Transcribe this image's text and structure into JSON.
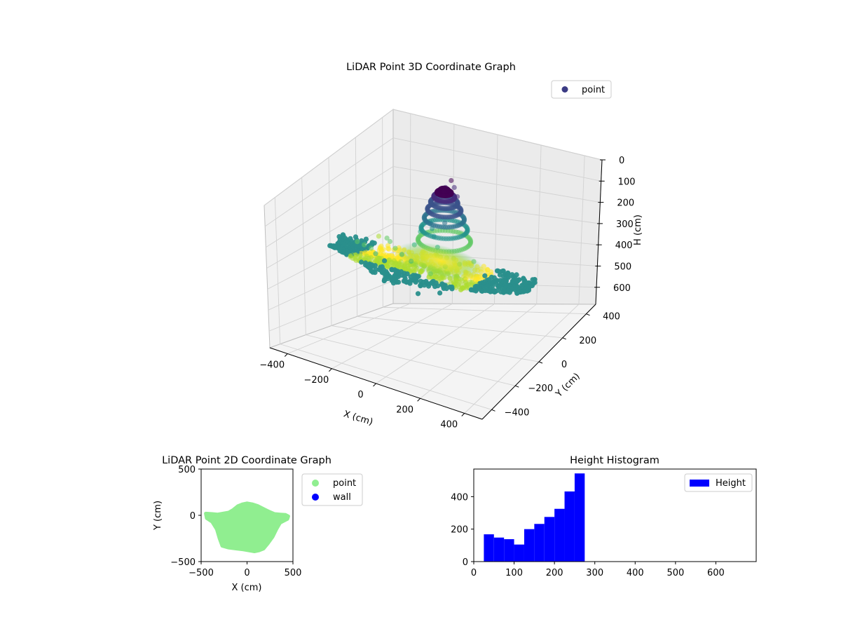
{
  "chart_data": [
    {
      "type": "scatter",
      "title": "LiDAR Point 3D Coordinate Graph",
      "xlabel": "X (cm)",
      "ylabel": "Y (cm)",
      "zlabel": "H (cm)",
      "xlim": [
        -480,
        480
      ],
      "ylim": [
        -480,
        480
      ],
      "zlim": [
        0,
        680
      ],
      "z_inverted": true,
      "xticks": [
        -400,
        -200,
        0,
        200,
        400
      ],
      "yticks": [
        -400,
        -200,
        0,
        200,
        400
      ],
      "zticks": [
        0,
        100,
        200,
        300,
        400,
        500,
        600
      ],
      "colormap": "viridis",
      "legend": {
        "label": "point",
        "color": "#3b3b84",
        "placement": "top-right"
      },
      "grid": true,
      "series": [
        {
          "name": "point",
          "sample_points": [
            [
              -450,
              20,
              320
            ],
            [
              -420,
              0,
              300
            ],
            [
              -400,
              -30,
              290
            ],
            [
              -380,
              30,
              310
            ],
            [
              -350,
              -60,
              280
            ],
            [
              -320,
              10,
              300
            ],
            [
              -300,
              -90,
              270
            ],
            [
              -280,
              40,
              290
            ],
            [
              -250,
              -120,
              260
            ],
            [
              -230,
              20,
              280
            ],
            [
              -200,
              -150,
              250
            ],
            [
              -180,
              -40,
              260
            ],
            [
              -150,
              -200,
              240
            ],
            [
              -120,
              -100,
              250
            ],
            [
              -100,
              60,
              240
            ],
            [
              -80,
              -250,
              230
            ],
            [
              -60,
              -150,
              240
            ],
            [
              -40,
              90,
              110
            ],
            [
              -20,
              120,
              60
            ],
            [
              0,
              130,
              30
            ],
            [
              20,
              120,
              50
            ],
            [
              40,
              110,
              80
            ],
            [
              60,
              90,
              120
            ],
            [
              80,
              -280,
              250
            ],
            [
              100,
              -200,
              260
            ],
            [
              120,
              -120,
              260
            ],
            [
              150,
              -60,
              270
            ],
            [
              180,
              0,
              280
            ],
            [
              200,
              -300,
              270
            ],
            [
              230,
              -150,
              290
            ],
            [
              260,
              -50,
              300
            ],
            [
              300,
              -100,
              310
            ],
            [
              330,
              -20,
              320
            ],
            [
              360,
              0,
              330
            ],
            [
              400,
              -30,
              330
            ],
            [
              440,
              -10,
              330
            ],
            [
              -10,
              0,
              180
            ],
            [
              10,
              -20,
              200
            ],
            [
              30,
              30,
              160
            ],
            [
              -30,
              20,
              170
            ],
            [
              50,
              -60,
              220
            ],
            [
              -50,
              -70,
              230
            ],
            [
              0,
              -180,
              240
            ],
            [
              0,
              -330,
              260
            ],
            [
              -120,
              -300,
              250
            ],
            [
              130,
              -350,
              270
            ]
          ]
        }
      ]
    },
    {
      "type": "scatter",
      "title": "LiDAR Point 2D Coordinate Graph",
      "xlabel": "X (cm)",
      "ylabel": "Y (cm)",
      "xlim": [
        -500,
        500
      ],
      "ylim": [
        -500,
        500
      ],
      "xticks": [
        -500,
        0,
        500
      ],
      "yticks": [
        -500,
        0,
        500
      ],
      "legend_placement": "outside-right",
      "series": [
        {
          "name": "point",
          "color": "#90ee90",
          "outline": [
            [
              -450,
              20
            ],
            [
              -380,
              15
            ],
            [
              -320,
              10
            ],
            [
              -260,
              20
            ],
            [
              -200,
              30
            ],
            [
              -150,
              60
            ],
            [
              -100,
              100
            ],
            [
              -50,
              120
            ],
            [
              0,
              130
            ],
            [
              60,
              120
            ],
            [
              120,
              100
            ],
            [
              180,
              70
            ],
            [
              240,
              40
            ],
            [
              300,
              15
            ],
            [
              360,
              10
            ],
            [
              420,
              5
            ],
            [
              450,
              -10
            ],
            [
              440,
              -40
            ],
            [
              400,
              -60
            ],
            [
              360,
              -80
            ],
            [
              320,
              -150
            ],
            [
              280,
              -230
            ],
            [
              230,
              -300
            ],
            [
              180,
              -360
            ],
            [
              130,
              -380
            ],
            [
              80,
              -390
            ],
            [
              20,
              -380
            ],
            [
              -40,
              -370
            ],
            [
              -120,
              -360
            ],
            [
              -200,
              -350
            ],
            [
              -270,
              -330
            ],
            [
              -300,
              -250
            ],
            [
              -330,
              -150
            ],
            [
              -380,
              -70
            ],
            [
              -440,
              -30
            ]
          ]
        },
        {
          "name": "wall",
          "color": "#0000ff",
          "points": []
        }
      ]
    },
    {
      "type": "bar",
      "title": "Height Histogram",
      "xlim": [
        0,
        700
      ],
      "ylim": [
        0,
        570
      ],
      "xticks": [
        0,
        100,
        200,
        300,
        400,
        500,
        600
      ],
      "yticks": [
        0,
        200,
        400
      ],
      "legend": {
        "label": "Height",
        "color": "#0000ff",
        "placement": "top-right"
      },
      "bins": [
        {
          "start": 25,
          "end": 50,
          "count": 168
        },
        {
          "start": 50,
          "end": 75,
          "count": 148
        },
        {
          "start": 75,
          "end": 100,
          "count": 138
        },
        {
          "start": 100,
          "end": 125,
          "count": 105
        },
        {
          "start": 125,
          "end": 150,
          "count": 200
        },
        {
          "start": 150,
          "end": 175,
          "count": 232
        },
        {
          "start": 175,
          "end": 200,
          "count": 275
        },
        {
          "start": 200,
          "end": 225,
          "count": 325
        },
        {
          "start": 225,
          "end": 250,
          "count": 432
        },
        {
          "start": 250,
          "end": 275,
          "count": 543
        }
      ]
    }
  ]
}
